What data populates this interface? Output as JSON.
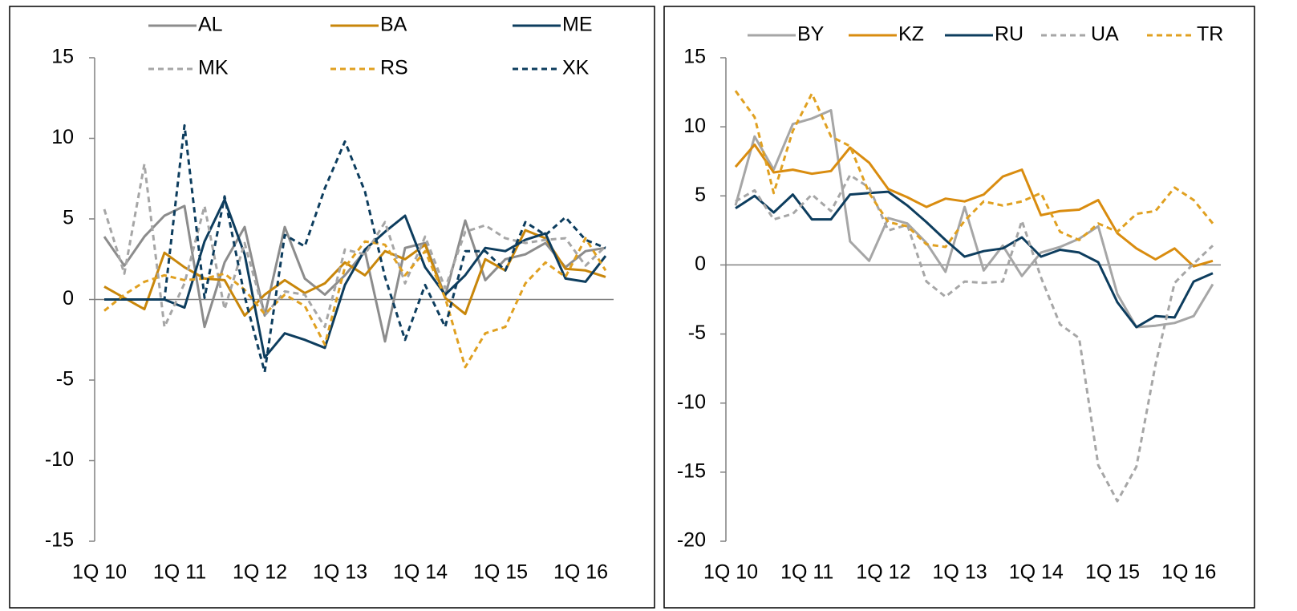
{
  "chart_data": [
    {
      "type": "line",
      "categories": [
        "1Q 10",
        null,
        null,
        null,
        "1Q 11",
        null,
        null,
        null,
        "1Q 12",
        null,
        null,
        null,
        "1Q 13",
        null,
        null,
        null,
        "1Q 14",
        null,
        null,
        null,
        "1Q 15",
        null,
        null,
        null,
        "1Q 16",
        null
      ],
      "ylim": [
        -15,
        15
      ],
      "yticks": [
        -15,
        -10,
        -5,
        0,
        5,
        10,
        15
      ],
      "series": [
        {
          "name": "AL",
          "color": "#8c8c8c",
          "style": "solid",
          "values": [
            3.9,
            2.1,
            3.9,
            5.2,
            5.8,
            -1.7,
            2.3,
            4.5,
            -1.0,
            4.5,
            1.3,
            0.3,
            1.5,
            3.0,
            -2.6,
            3.2,
            3.5,
            0.2,
            4.9,
            1.2,
            2.5,
            2.8,
            3.5,
            2.0,
            3.0,
            3.2
          ]
        },
        {
          "name": "BA",
          "color": "#c8860a",
          "style": "solid",
          "values": [
            0.8,
            0.1,
            -0.6,
            2.9,
            2.0,
            1.3,
            1.2,
            -1.0,
            0.3,
            1.2,
            0.4,
            1.0,
            2.3,
            1.5,
            3.0,
            2.5,
            3.4,
            0.1,
            -0.9,
            2.5,
            1.8,
            4.3,
            3.8,
            1.9,
            1.8,
            1.4
          ]
        },
        {
          "name": "ME",
          "color": "#0d3d5e",
          "style": "solid",
          "values": [
            0,
            0,
            0,
            0,
            -0.5,
            3.6,
            6.2,
            2.8,
            -3.6,
            -2.1,
            -2.5,
            -3.0,
            0.9,
            3.1,
            4.2,
            5.2,
            2.0,
            0.3,
            1.5,
            3.2,
            3.0,
            3.7,
            4.1,
            1.3,
            1.1,
            2.7
          ]
        },
        {
          "name": "MK",
          "color": "#a6a6a6",
          "style": "dashed",
          "values": [
            5.6,
            1.6,
            8.4,
            -1.7,
            1.0,
            5.8,
            -0.6,
            3.5,
            -1.0,
            0.5,
            0.3,
            -1.7,
            3.1,
            2.8,
            4.8,
            1.0,
            3.9,
            0.7,
            4.2,
            4.6,
            3.8,
            3.5,
            3.7,
            3.8,
            2.1,
            3.3
          ]
        },
        {
          "name": "RS",
          "color": "#e0a020",
          "style": "dashed",
          "values": [
            -0.7,
            0.3,
            1.1,
            1.5,
            1.2,
            1.3,
            1.6,
            0.6,
            -0.9,
            0.3,
            -0.4,
            -2.8,
            2.0,
            3.6,
            3.4,
            1.5,
            3.0,
            0.1,
            -4.2,
            -2.1,
            -1.7,
            1.0,
            2.3,
            1.4,
            3.8,
            1.8
          ]
        },
        {
          "name": "XK",
          "color": "#0d3d5e",
          "style": "dashed",
          "values": [
            0,
            0,
            0,
            0,
            10.8,
            0.1,
            6.4,
            0.2,
            -4.5,
            4.0,
            3.3,
            6.9,
            9.8,
            6.7,
            1.4,
            -2.5,
            0.9,
            -1.7,
            3.0,
            3.0,
            1.8,
            4.8,
            4.0,
            5.1,
            3.7,
            3.2
          ]
        }
      ]
    },
    {
      "type": "line",
      "categories": [
        "1Q 10",
        null,
        null,
        null,
        "1Q 11",
        null,
        null,
        null,
        "1Q 12",
        null,
        null,
        null,
        "1Q 13",
        null,
        null,
        null,
        "1Q 14",
        null,
        null,
        null,
        "1Q 15",
        null,
        null,
        null,
        "1Q 16",
        null
      ],
      "ylim": [
        -20,
        15
      ],
      "yticks": [
        -20,
        -15,
        -10,
        -5,
        0,
        5,
        10,
        15
      ],
      "series": [
        {
          "name": "BY",
          "color": "#a6a6a6",
          "style": "solid",
          "values": [
            4.3,
            9.3,
            6.9,
            10.2,
            10.6,
            11.2,
            1.7,
            0.3,
            3.4,
            3.0,
            1.6,
            -0.5,
            4.2,
            -0.4,
            1.4,
            -0.8,
            0.9,
            1.3,
            1.9,
            2.8,
            -2.1,
            -4.5,
            -4.4,
            -4.2,
            -3.7,
            -1.4
          ]
        },
        {
          "name": "KZ",
          "color": "#d98c0f",
          "style": "solid",
          "values": [
            7.1,
            8.7,
            6.7,
            6.9,
            6.6,
            6.8,
            8.5,
            7.4,
            5.5,
            4.9,
            4.2,
            4.8,
            4.6,
            5.1,
            6.4,
            6.9,
            3.6,
            3.9,
            4.0,
            4.7,
            2.3,
            1.2,
            0.4,
            1.2,
            -0.1,
            0.3
          ]
        },
        {
          "name": "RU",
          "color": "#0d3d5e",
          "style": "solid",
          "values": [
            4.1,
            5.0,
            3.8,
            5.1,
            3.3,
            3.3,
            5.1,
            5.2,
            5.3,
            4.3,
            3.1,
            1.8,
            0.6,
            1.0,
            1.2,
            2.0,
            0.6,
            1.1,
            0.9,
            0.2,
            -2.7,
            -4.5,
            -3.7,
            -3.8,
            -1.2,
            -0.6
          ]
        },
        {
          "name": "UA",
          "color": "#a6a6a6",
          "style": "dashed",
          "values": [
            4.6,
            5.4,
            3.3,
            3.7,
            5.1,
            3.9,
            6.5,
            5.6,
            2.5,
            2.9,
            -1.2,
            -2.3,
            -1.2,
            -1.3,
            -1.2,
            3.2,
            -0.9,
            -4.3,
            -5.3,
            -14.5,
            -17.1,
            -14.6,
            -7.2,
            -1.3,
            0.1,
            1.4
          ]
        },
        {
          "name": "TR",
          "color": "#e0a020",
          "style": "dashed",
          "values": [
            12.6,
            10.7,
            5.2,
            9.7,
            12.4,
            9.3,
            8.6,
            5.2,
            3.1,
            2.8,
            1.5,
            1.3,
            3.2,
            4.6,
            4.3,
            4.6,
            5.2,
            2.4,
            1.8,
            3.0,
            2.4,
            3.7,
            3.9,
            5.6,
            4.7,
            3.0
          ]
        }
      ]
    }
  ]
}
